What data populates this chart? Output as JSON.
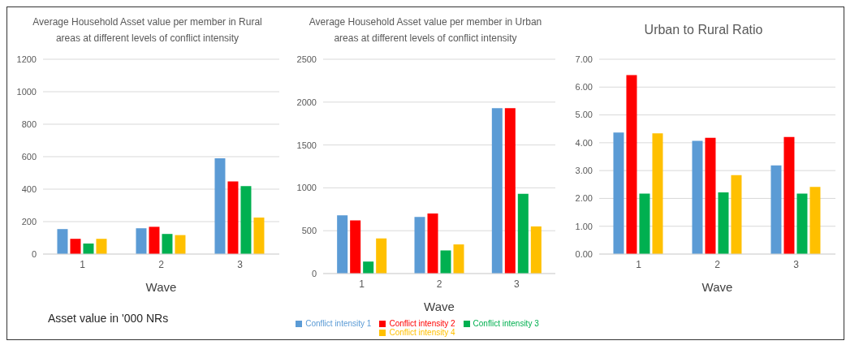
{
  "chart_data": [
    {
      "type": "bar",
      "title": "Average Household Asset value per member in Rural areas at different levels of conflict intensity",
      "xlabel": "Wave",
      "categories": [
        "1",
        "2",
        "3"
      ],
      "series": [
        {
          "color": "#5b9bd5",
          "values": [
            154,
            159,
            590
          ]
        },
        {
          "color": "#ff0000",
          "values": [
            94,
            168,
            448
          ]
        },
        {
          "color": "#00b050",
          "values": [
            65,
            124,
            419
          ]
        },
        {
          "color": "#ffc000",
          "values": [
            94,
            117,
            225
          ]
        }
      ],
      "ylim": [
        0,
        1200
      ],
      "yticks": [
        0,
        200,
        400,
        600,
        800,
        1000,
        1200
      ],
      "grid": "y",
      "legend": false,
      "annotations": [
        "Asset value in '000 NRs"
      ]
    },
    {
      "type": "bar",
      "title": "Average Household Asset value per member in Urban areas at different levels of conflict intensity",
      "xlabel": "Wave",
      "categories": [
        "1",
        "2",
        "3"
      ],
      "series": [
        {
          "name": "Conflict intensity 1",
          "color": "#5b9bd5",
          "values": [
            680,
            660,
            1930
          ]
        },
        {
          "name": "Conflict intensity 2",
          "color": "#ff0000",
          "values": [
            620,
            700,
            1930
          ]
        },
        {
          "name": "Conflict intensity 3",
          "color": "#00b050",
          "values": [
            140,
            270,
            930
          ]
        },
        {
          "name": "Conflict intensity 4",
          "color": "#ffc000",
          "values": [
            410,
            340,
            550
          ]
        }
      ],
      "ylim": [
        0,
        2500
      ],
      "yticks": [
        0,
        500,
        1000,
        1500,
        2000,
        2500
      ],
      "grid": "y",
      "legend": "bottom"
    },
    {
      "type": "bar",
      "title": "Urban to Rural Ratio",
      "xlabel": "Wave",
      "categories": [
        "1",
        "2",
        "3"
      ],
      "series": [
        {
          "color": "#5b9bd5",
          "values": [
            4.37,
            4.07,
            3.19
          ]
        },
        {
          "color": "#ff0000",
          "values": [
            6.43,
            4.18,
            4.21
          ]
        },
        {
          "color": "#00b050",
          "values": [
            2.17,
            2.22,
            2.17
          ]
        },
        {
          "color": "#ffc000",
          "values": [
            4.34,
            2.84,
            2.41
          ]
        }
      ],
      "ylim": [
        0,
        7
      ],
      "yticks": [
        {
          "value": 0,
          "label": "0.00"
        },
        {
          "value": 1,
          "label": "1.00"
        },
        {
          "value": 2,
          "label": "2.00"
        },
        {
          "value": 3,
          "label": "3.00"
        },
        {
          "value": 4,
          "label": "4.00"
        },
        {
          "value": 5,
          "label": "5.00"
        },
        {
          "value": 6,
          "label": "6.00"
        },
        {
          "value": 7,
          "label": "7.00"
        }
      ],
      "grid": "y",
      "legend": false
    }
  ]
}
